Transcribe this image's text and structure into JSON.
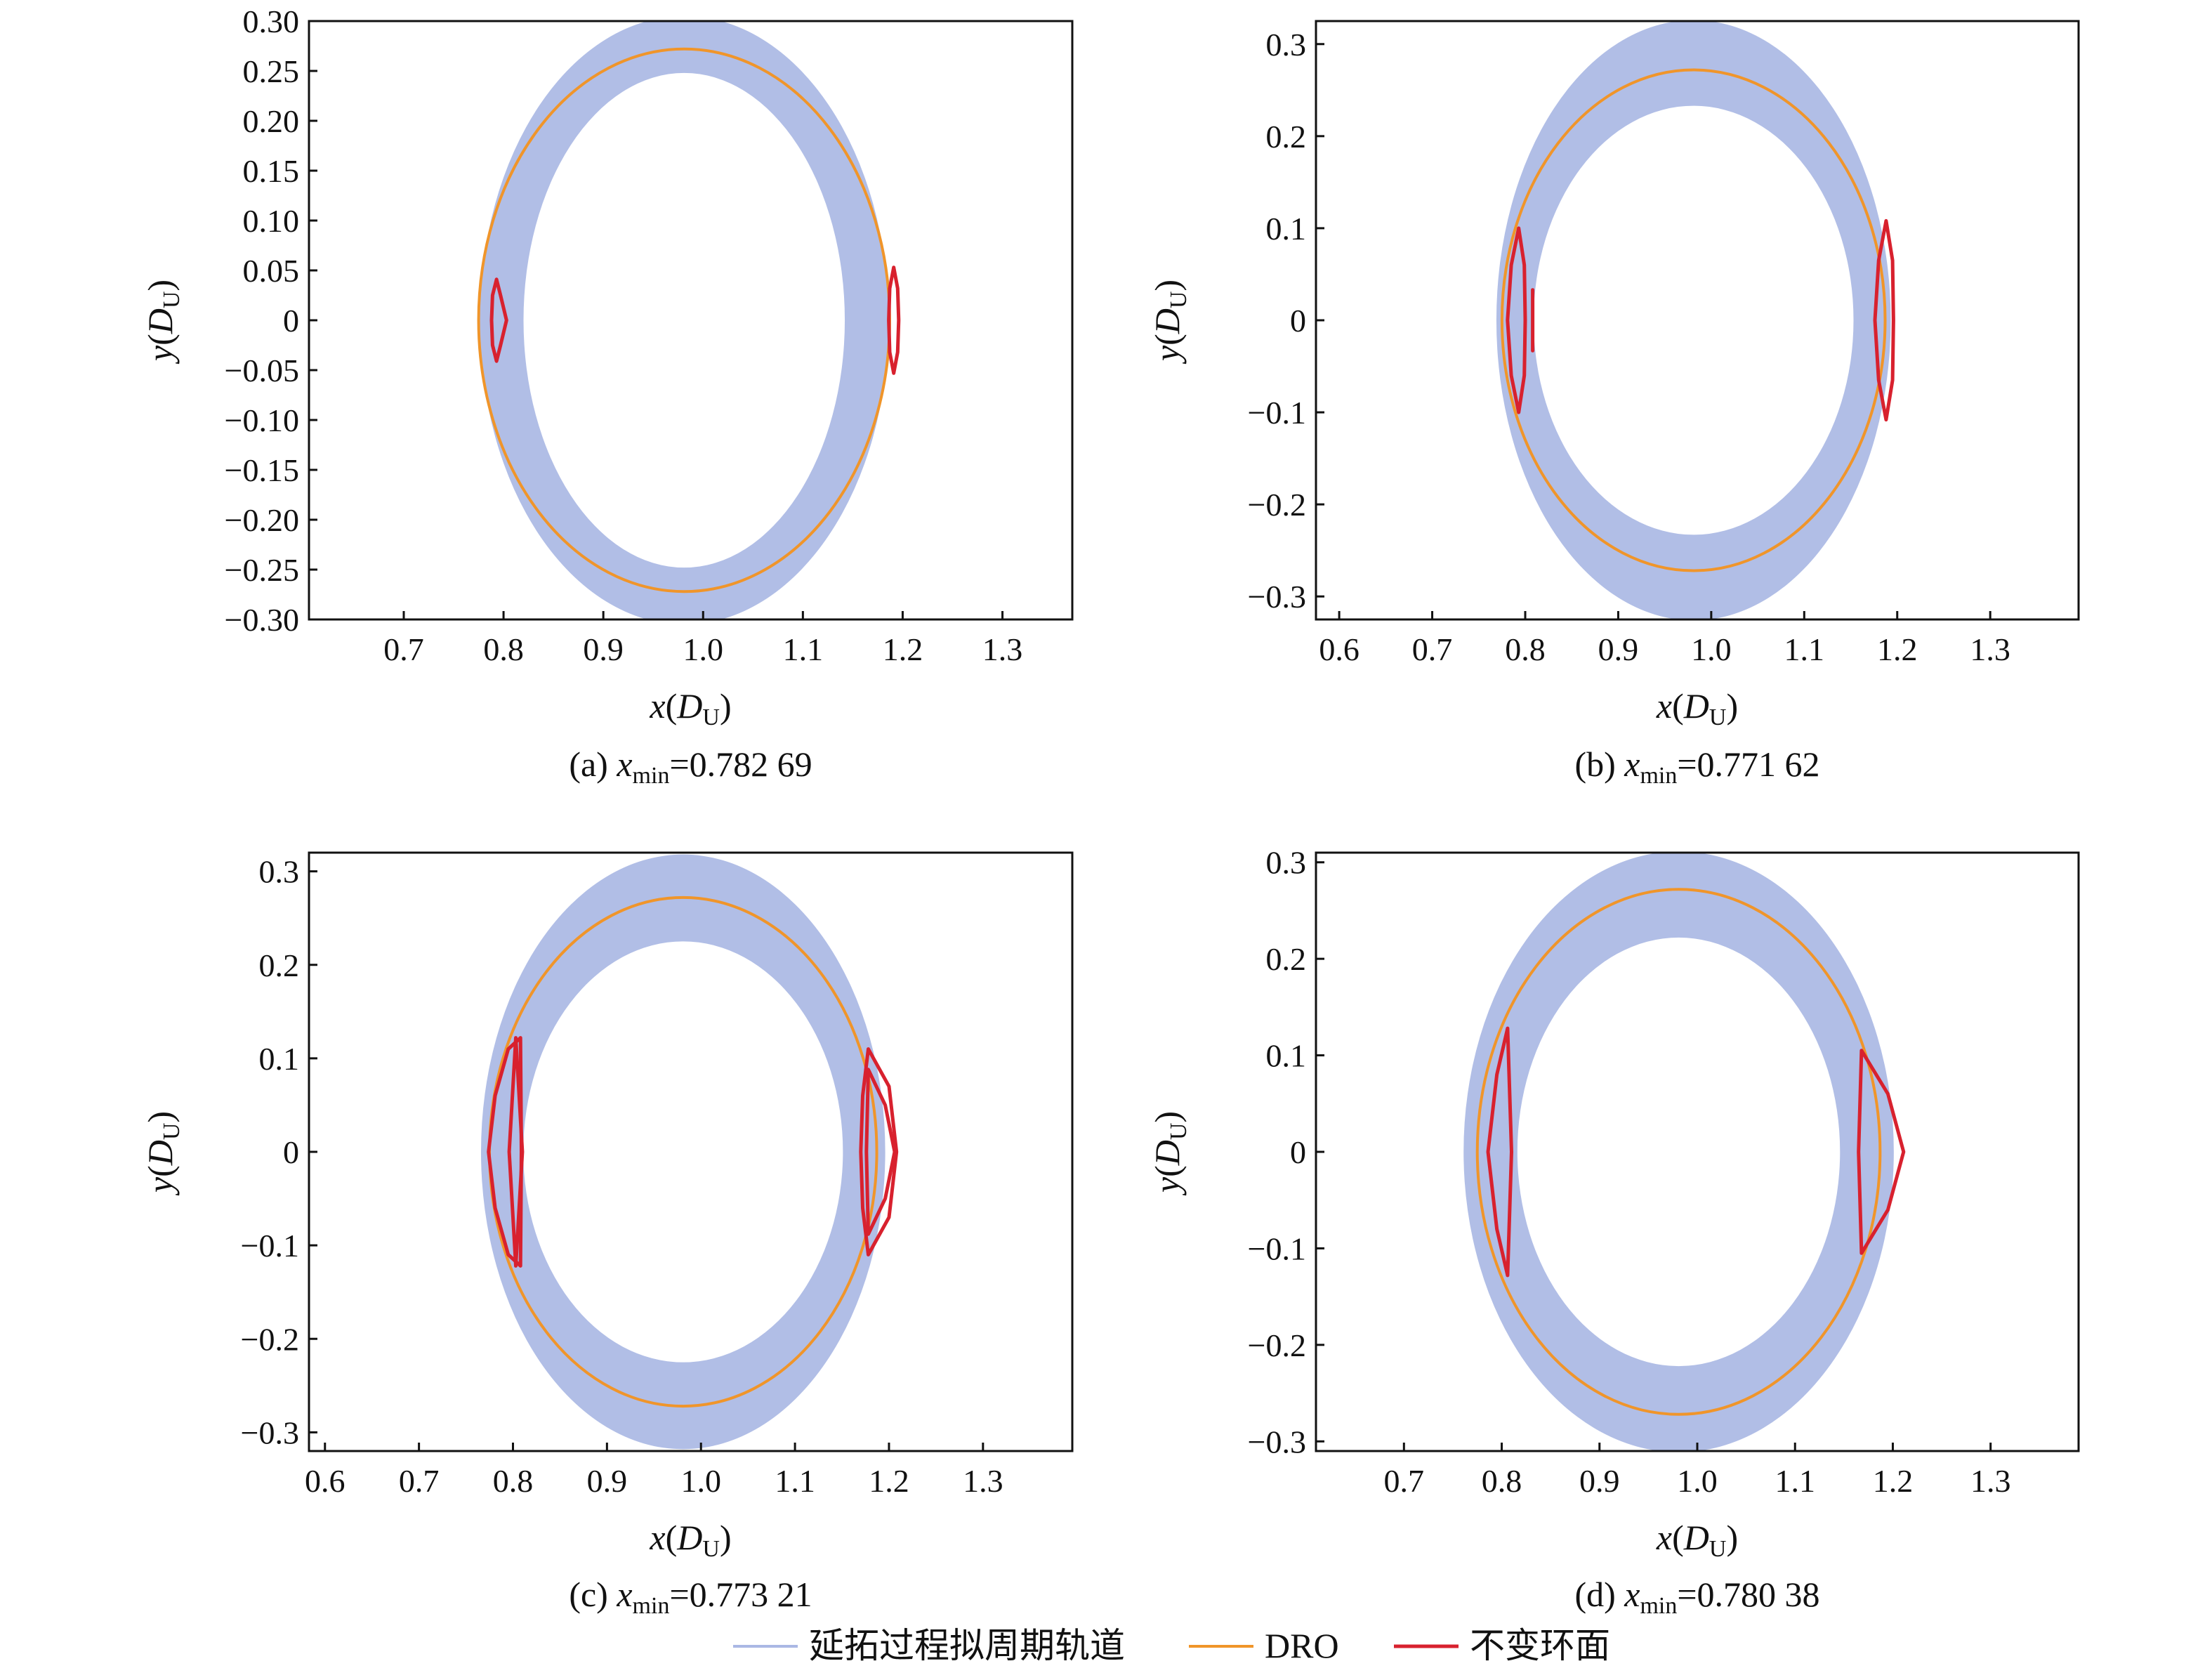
{
  "colors": {
    "quasi": "#aab8e4",
    "dro": "#f0952a",
    "torus": "#d8212e",
    "axis": "#111111"
  },
  "legend": {
    "items": [
      {
        "key": "quasi",
        "label": "延拓过程拟周期轨道"
      },
      {
        "key": "dro",
        "label": "DRO"
      },
      {
        "key": "torus",
        "label": "不变环面"
      }
    ]
  },
  "chart_data": [
    {
      "type": "line",
      "panel": "a",
      "caption": {
        "prefix": "(a) ",
        "var": "x",
        "sub": "min",
        "value": "=0.782 69"
      },
      "xlabel": {
        "var": "x",
        "unit": "D",
        "unit_sub": "U"
      },
      "ylabel": {
        "var": "y",
        "unit": "D",
        "unit_sub": "U"
      },
      "xlim": [
        0.605,
        1.37
      ],
      "ylim": [
        -0.3,
        0.3
      ],
      "xticks": [
        0.7,
        0.8,
        0.9,
        1.0,
        1.1,
        1.2,
        1.3
      ],
      "xtick_labels": [
        "0.7",
        "0.8",
        "0.9",
        "1.0",
        "1.1",
        "1.2",
        "1.3"
      ],
      "yticks": [
        0.3,
        0.25,
        0.2,
        0.15,
        0.1,
        0.05,
        0,
        -0.05,
        -0.1,
        -0.15,
        -0.2,
        -0.25,
        -0.3
      ],
      "ytick_labels": [
        "0.30",
        "0.25",
        "0.20",
        "0.15",
        "0.10",
        "0.05",
        "0",
        "−0.05",
        "−0.10",
        "−0.15",
        "−0.20",
        "−0.25",
        "−0.30"
      ],
      "series": [
        {
          "key": "quasi",
          "name": "延拓过程拟周期轨道",
          "shape": "band",
          "center": [
            0.981,
            0
          ],
          "outer_radii": [
            0.205,
            0.305
          ],
          "inner_radii": [
            0.161,
            0.248
          ]
        },
        {
          "key": "dro",
          "name": "DRO",
          "shape": "ellipse",
          "center": [
            0.981,
            0
          ],
          "radii": [
            0.206,
            0.272
          ]
        },
        {
          "key": "torus",
          "name": "不变环面",
          "shape": "closed_curve",
          "loops": [
            {
              "x": [
                0.793,
                0.797,
                0.803,
                0.797,
                0.793,
                0.789,
                0.788,
                0.789,
                0.793
              ],
              "y": [
                0.041,
                0.025,
                0.0,
                -0.025,
                -0.041,
                -0.025,
                0.0,
                0.025,
                0.041
              ]
            },
            {
              "x": [
                1.191,
                1.195,
                1.196,
                1.195,
                1.191,
                1.187,
                1.186,
                1.187,
                1.191
              ],
              "y": [
                0.053,
                0.032,
                0.0,
                -0.032,
                -0.053,
                -0.032,
                0.0,
                0.032,
                0.053
              ]
            }
          ]
        }
      ]
    },
    {
      "type": "line",
      "panel": "b",
      "caption": {
        "prefix": "(b) ",
        "var": "x",
        "sub": "min",
        "value": "=0.771 62"
      },
      "xlabel": {
        "var": "x",
        "unit": "D",
        "unit_sub": "U"
      },
      "ylabel": {
        "var": "y",
        "unit": "D",
        "unit_sub": "U"
      },
      "xlim": [
        0.575,
        1.395
      ],
      "ylim": [
        -0.325,
        0.325
      ],
      "xticks": [
        0.6,
        0.7,
        0.8,
        0.9,
        1.0,
        1.1,
        1.2,
        1.3
      ],
      "xtick_labels": [
        "0.6",
        "0.7",
        "0.8",
        "0.9",
        "1.0",
        "1.1",
        "1.2",
        "1.3"
      ],
      "yticks": [
        0.3,
        0.2,
        0.1,
        0,
        -0.1,
        -0.2,
        -0.3
      ],
      "ytick_labels": [
        "0.3",
        "0.2",
        "0.1",
        "0",
        "−0.1",
        "−0.2",
        "−0.3"
      ],
      "series": [
        {
          "key": "quasi",
          "name": "延拓过程拟周期轨道",
          "shape": "band",
          "center": [
            0.981,
            0
          ],
          "outer_radii": [
            0.212,
            0.326
          ],
          "inner_radii": [
            0.172,
            0.233
          ]
        },
        {
          "key": "dro",
          "name": "DRO",
          "shape": "ellipse",
          "center": [
            0.981,
            0
          ],
          "radii": [
            0.206,
            0.272
          ]
        },
        {
          "key": "torus",
          "name": "不变环面",
          "shape": "closed_curve",
          "loops": [
            {
              "x": [
                0.793,
                0.799,
                0.8,
                0.799,
                0.793,
                0.785,
                0.781,
                0.785,
                0.793
              ],
              "y": [
                0.1,
                0.06,
                0.0,
                -0.06,
                -0.1,
                -0.06,
                0.0,
                0.06,
                0.1
              ]
            },
            {
              "x": [
                0.808,
                0.808,
                0.808
              ],
              "y": [
                0.033,
                0.0,
                -0.033
              ]
            },
            {
              "x": [
                1.188,
                1.195,
                1.196,
                1.195,
                1.188,
                1.18,
                1.176,
                1.18,
                1.188
              ],
              "y": [
                0.108,
                0.065,
                0.0,
                -0.065,
                -0.108,
                -0.065,
                0.0,
                0.065,
                0.108
              ]
            }
          ]
        }
      ]
    },
    {
      "type": "line",
      "panel": "c",
      "caption": {
        "prefix": "(c) ",
        "var": "x",
        "sub": "min",
        "value": "=0.773 21"
      },
      "xlabel": {
        "var": "x",
        "unit": "D",
        "unit_sub": "U"
      },
      "ylabel": {
        "var": "y",
        "unit": "D",
        "unit_sub": "U"
      },
      "xlim": [
        0.583,
        1.395
      ],
      "ylim": [
        -0.32,
        0.32
      ],
      "xticks": [
        0.6,
        0.7,
        0.8,
        0.9,
        1.0,
        1.1,
        1.2,
        1.3
      ],
      "xtick_labels": [
        "0.6",
        "0.7",
        "0.8",
        "0.9",
        "1.0",
        "1.1",
        "1.2",
        "1.3"
      ],
      "yticks": [
        0.3,
        0.2,
        0.1,
        0,
        -0.1,
        -0.2,
        -0.3
      ],
      "ytick_labels": [
        "0.3",
        "0.2",
        "0.1",
        "0",
        "−0.1",
        "−0.2",
        "−0.3"
      ],
      "series": [
        {
          "key": "quasi",
          "name": "延拓过程拟周期轨道",
          "shape": "band",
          "center": [
            0.981,
            0
          ],
          "outer_radii": [
            0.215,
            0.318
          ],
          "inner_radii": [
            0.17,
            0.225
          ]
        },
        {
          "key": "dro",
          "name": "DRO",
          "shape": "ellipse",
          "center": [
            0.981,
            0
          ],
          "radii": [
            0.206,
            0.272
          ]
        },
        {
          "key": "torus",
          "name": "不变环面",
          "shape": "closed_curve",
          "loops": [
            {
              "x": [
                0.808,
                0.809,
                0.808,
                0.795,
                0.781,
                0.774,
                0.781,
                0.795,
                0.808
              ],
              "y": [
                0.122,
                0.0,
                -0.122,
                -0.11,
                -0.06,
                0.0,
                0.06,
                0.11,
                0.122
              ]
            },
            {
              "x": [
                0.803,
                0.81,
                0.803,
                0.796,
                0.803
              ],
              "y": [
                0.122,
                0.0,
                -0.122,
                0.0,
                0.122
              ]
            },
            {
              "x": [
                1.178,
                1.2,
                1.208,
                1.2,
                1.178,
                1.172,
                1.17,
                1.172,
                1.178
              ],
              "y": [
                0.11,
                0.07,
                0.0,
                -0.07,
                -0.11,
                -0.06,
                0.0,
                0.06,
                0.11
              ]
            },
            {
              "x": [
                1.178,
                1.196,
                1.206,
                1.196,
                1.178,
                1.176,
                1.178
              ],
              "y": [
                0.088,
                0.05,
                0.0,
                -0.05,
                -0.088,
                0.0,
                0.088
              ]
            }
          ]
        }
      ]
    },
    {
      "type": "line",
      "panel": "d",
      "caption": {
        "prefix": "(d) ",
        "var": "x",
        "sub": "min",
        "value": "=0.780 38"
      },
      "xlabel": {
        "var": "x",
        "unit": "D",
        "unit_sub": "U"
      },
      "ylabel": {
        "var": "y",
        "unit": "D",
        "unit_sub": "U"
      },
      "xlim": [
        0.61,
        1.39
      ],
      "ylim": [
        -0.31,
        0.31
      ],
      "xticks": [
        0.7,
        0.8,
        0.9,
        1.0,
        1.1,
        1.2,
        1.3
      ],
      "xtick_labels": [
        "0.7",
        "0.8",
        "0.9",
        "1.0",
        "1.1",
        "1.2",
        "1.3"
      ],
      "yticks": [
        0.3,
        0.2,
        0.1,
        0,
        -0.1,
        -0.2,
        -0.3
      ],
      "ytick_labels": [
        "0.3",
        "0.2",
        "0.1",
        "0",
        "−0.1",
        "−0.2",
        "−0.3"
      ],
      "series": [
        {
          "key": "quasi",
          "name": "延拓过程拟周期轨道",
          "shape": "band",
          "center": [
            0.981,
            0
          ],
          "outer_radii": [
            0.22,
            0.311
          ],
          "inner_radii": [
            0.165,
            0.222
          ]
        },
        {
          "key": "dro",
          "name": "DRO",
          "shape": "ellipse",
          "center": [
            0.981,
            0
          ],
          "radii": [
            0.206,
            0.272
          ]
        },
        {
          "key": "torus",
          "name": "不变环面",
          "shape": "closed_curve",
          "loops": [
            {
              "x": [
                0.806,
                0.81,
                0.806,
                0.795,
                0.786,
                0.795,
                0.806
              ],
              "y": [
                0.128,
                0.0,
                -0.128,
                -0.08,
                0.0,
                0.08,
                0.128
              ]
            },
            {
              "x": [
                1.168,
                1.165,
                1.168,
                1.195,
                1.211,
                1.195,
                1.168
              ],
              "y": [
                0.105,
                0.0,
                -0.105,
                -0.06,
                0.0,
                0.06,
                0.105
              ]
            }
          ]
        }
      ]
    }
  ]
}
